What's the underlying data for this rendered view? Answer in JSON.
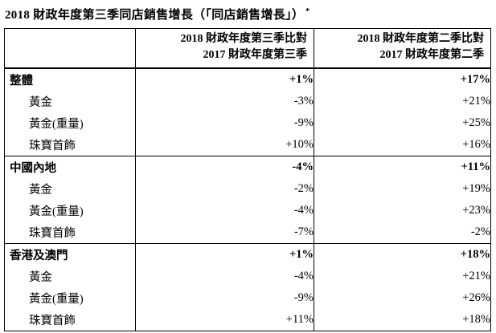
{
  "page": {
    "background": "#ffffff",
    "text_color": "#000000",
    "border_color": "#000000"
  },
  "title": {
    "text": "2018 財政年度第三季同店銷售增長（「同店銷售增長」）",
    "footnote_marker": "*"
  },
  "table": {
    "column_headers": [
      {
        "line1": "2018 財政年度第三季比對",
        "line2": "2017 財政年度第三季"
      },
      {
        "line1": "2018 財政年度第二季比對",
        "line2": "2017 財政年度第二季"
      }
    ],
    "groups": [
      {
        "header": {
          "label": "整體",
          "q3_vs_q3": "+1%",
          "q2_vs_q2": "+17%"
        },
        "rows": [
          {
            "label": "黃金",
            "q3_vs_q3": "-3%",
            "q2_vs_q2": "+21%"
          },
          {
            "label": "黃金(重量)",
            "q3_vs_q3": "-9%",
            "q2_vs_q2": "+25%"
          },
          {
            "label": "珠寶首飾",
            "q3_vs_q3": "+10%",
            "q2_vs_q2": "+16%"
          }
        ]
      },
      {
        "header": {
          "label": "中國內地",
          "q3_vs_q3": "-4%",
          "q2_vs_q2": "+11%"
        },
        "rows": [
          {
            "label": "黃金",
            "q3_vs_q3": "-2%",
            "q2_vs_q2": "+19%"
          },
          {
            "label": "黃金(重量)",
            "q3_vs_q3": "-4%",
            "q2_vs_q2": "+23%"
          },
          {
            "label": "珠寶首飾",
            "q3_vs_q3": "-7%",
            "q2_vs_q2": "-2%"
          }
        ]
      },
      {
        "header": {
          "label": "香港及澳門",
          "q3_vs_q3": "+1%",
          "q2_vs_q2": "+18%"
        },
        "rows": [
          {
            "label": "黃金",
            "q3_vs_q3": "-4%",
            "q2_vs_q2": "+21%"
          },
          {
            "label": "黃金(重量)",
            "q3_vs_q3": "-9%",
            "q2_vs_q2": "+26%"
          },
          {
            "label": "珠寶首飾",
            "q3_vs_q3": "+11%",
            "q2_vs_q2": "+18%"
          }
        ]
      }
    ]
  }
}
